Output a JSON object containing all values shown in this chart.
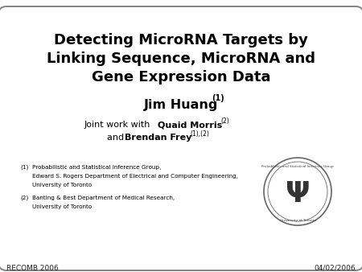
{
  "bg_color": "#ffffff",
  "border_color": "#888888",
  "title_line1": "Detecting MicroRNA Targets by",
  "title_line2": "Linking Sequence, MicroRNA and",
  "title_line3": "Gene Expression Data",
  "author": "Jim Huang",
  "author_sup": "(1)",
  "collab_line1_plain": "Joint work with ",
  "collab_line1_bold": "Quaid Morris",
  "collab_line1_sup": "(2)",
  "collab_line2_plain": "and ",
  "collab_line2_bold": "Brendan Frey",
  "collab_line2_sup": "(1),(2)",
  "affil1_num": "(1)",
  "affil1_line1": "Probabilistic and Statistical Inference Group,",
  "affil1_line2": "Edward S. Rogers Department of Electrical and Computer Engineering,",
  "affil1_line3": "University of Toronto",
  "affil2_num": "(2)",
  "affil2_line1": "Banting & Best Department of Medical Research,",
  "affil2_line2": "University of Toronto",
  "footer_left": "RECOMB 2006",
  "footer_right": "04/02/2006",
  "text_color": "#000000",
  "footer_color": "#222222"
}
